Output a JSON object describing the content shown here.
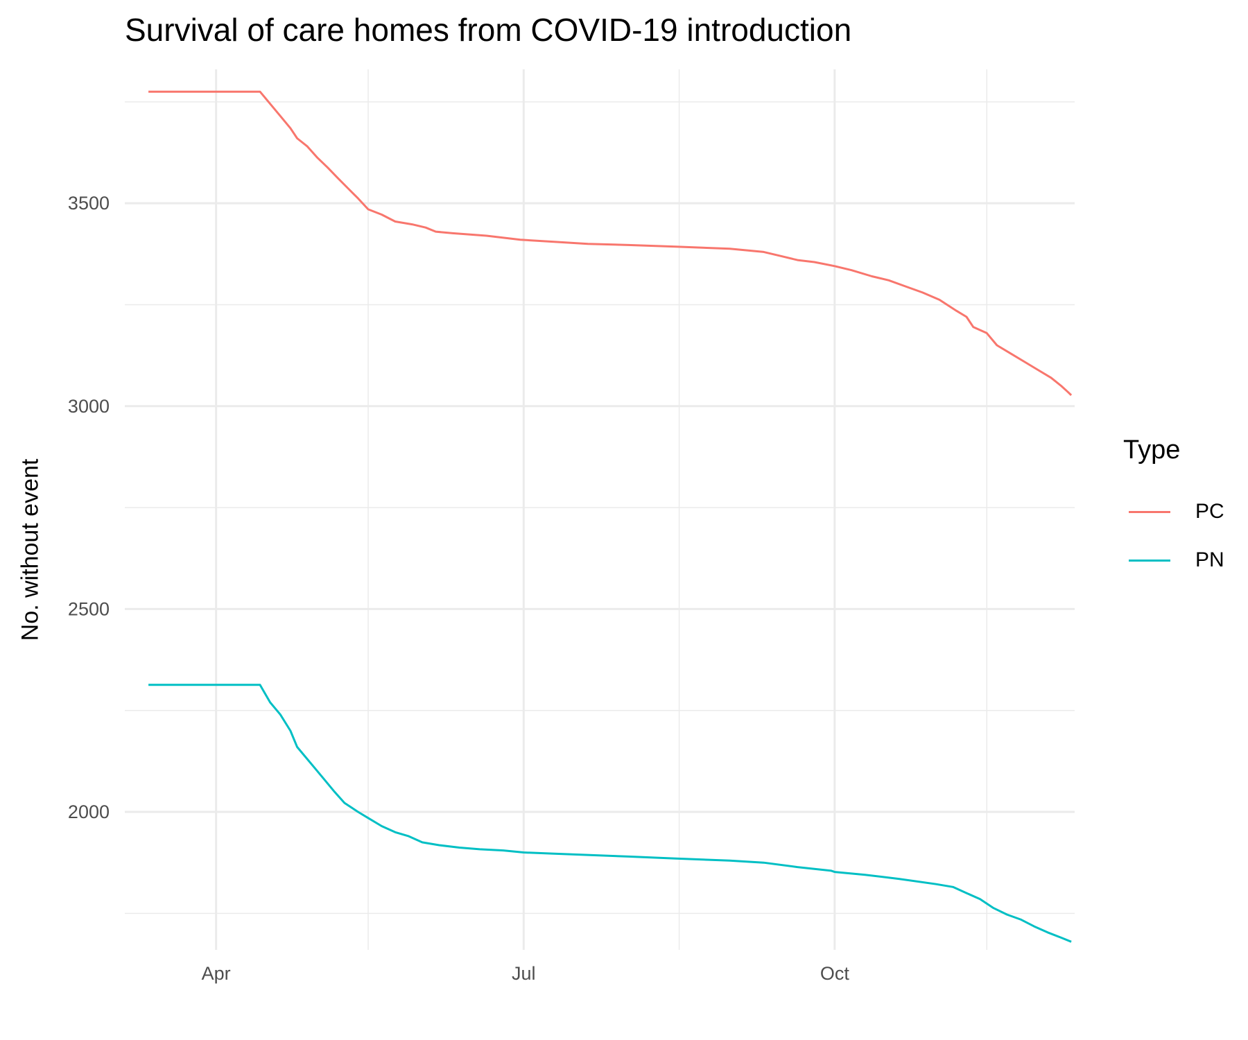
{
  "chart_data": {
    "type": "line",
    "title": "Survival of care homes from COVID-19 introduction",
    "xlabel": "",
    "ylabel": "No. without event",
    "x_axis": {
      "kind": "date",
      "range": [
        "2020-03-05",
        "2020-12-11"
      ],
      "tick_dates": [
        "2020-04-01",
        "2020-07-01",
        "2020-10-01"
      ],
      "tick_labels": [
        "Apr",
        "Jul",
        "Oct"
      ],
      "minor_dates": [
        "2020-05-16",
        "2020-08-16",
        "2020-11-15"
      ]
    },
    "y_axis": {
      "range": [
        1660,
        3830
      ],
      "ticks": [
        2000,
        2500,
        3000,
        3500
      ],
      "minor_ticks": [
        1750,
        2250,
        2750,
        3250,
        3750
      ]
    },
    "grid": true,
    "legend": {
      "title": "Type",
      "placement": "right"
    },
    "series": [
      {
        "name": "PC",
        "color": "#F8766D",
        "points": [
          [
            "2020-03-12",
            3775
          ],
          [
            "2020-04-14",
            3775
          ],
          [
            "2020-04-17",
            3745
          ],
          [
            "2020-04-20",
            3715
          ],
          [
            "2020-04-23",
            3685
          ],
          [
            "2020-04-25",
            3660
          ],
          [
            "2020-04-28",
            3640
          ],
          [
            "2020-05-01",
            3612
          ],
          [
            "2020-05-04",
            3588
          ],
          [
            "2020-05-07",
            3562
          ],
          [
            "2020-05-10",
            3537
          ],
          [
            "2020-05-13",
            3512
          ],
          [
            "2020-05-16",
            3485
          ],
          [
            "2020-05-20",
            3472
          ],
          [
            "2020-05-24",
            3455
          ],
          [
            "2020-05-29",
            3448
          ],
          [
            "2020-06-02",
            3440
          ],
          [
            "2020-06-05",
            3430
          ],
          [
            "2020-06-10",
            3426
          ],
          [
            "2020-06-20",
            3420
          ],
          [
            "2020-06-30",
            3410
          ],
          [
            "2020-07-10",
            3405
          ],
          [
            "2020-07-20",
            3400
          ],
          [
            "2020-08-01",
            3397
          ],
          [
            "2020-08-15",
            3393
          ],
          [
            "2020-08-31",
            3388
          ],
          [
            "2020-09-10",
            3380
          ],
          [
            "2020-09-15",
            3370
          ],
          [
            "2020-09-20",
            3360
          ],
          [
            "2020-09-25",
            3355
          ],
          [
            "2020-10-01",
            3345
          ],
          [
            "2020-10-06",
            3335
          ],
          [
            "2020-10-12",
            3320
          ],
          [
            "2020-10-17",
            3310
          ],
          [
            "2020-10-22",
            3295
          ],
          [
            "2020-10-27",
            3280
          ],
          [
            "2020-11-01",
            3262
          ],
          [
            "2020-11-06",
            3235
          ],
          [
            "2020-11-09",
            3220
          ],
          [
            "2020-11-11",
            3195
          ],
          [
            "2020-11-15",
            3180
          ],
          [
            "2020-11-18",
            3150
          ],
          [
            "2020-11-22",
            3130
          ],
          [
            "2020-11-26",
            3110
          ],
          [
            "2020-11-30",
            3090
          ],
          [
            "2020-12-04",
            3070
          ],
          [
            "2020-12-07",
            3050
          ],
          [
            "2020-12-09",
            3035
          ],
          [
            "2020-12-10",
            3027
          ]
        ]
      },
      {
        "name": "PN",
        "color": "#00BFC4",
        "points": [
          [
            "2020-03-12",
            2313
          ],
          [
            "2020-04-14",
            2313
          ],
          [
            "2020-04-17",
            2270
          ],
          [
            "2020-04-20",
            2240
          ],
          [
            "2020-04-23",
            2200
          ],
          [
            "2020-04-25",
            2160
          ],
          [
            "2020-04-27",
            2140
          ],
          [
            "2020-04-30",
            2110
          ],
          [
            "2020-05-03",
            2080
          ],
          [
            "2020-05-06",
            2050
          ],
          [
            "2020-05-09",
            2022
          ],
          [
            "2020-05-13",
            2000
          ],
          [
            "2020-05-16",
            1985
          ],
          [
            "2020-05-20",
            1965
          ],
          [
            "2020-05-24",
            1950
          ],
          [
            "2020-05-28",
            1940
          ],
          [
            "2020-06-01",
            1925
          ],
          [
            "2020-06-06",
            1918
          ],
          [
            "2020-06-12",
            1912
          ],
          [
            "2020-06-18",
            1908
          ],
          [
            "2020-06-25",
            1905
          ],
          [
            "2020-07-01",
            1900
          ],
          [
            "2020-07-10",
            1897
          ],
          [
            "2020-07-20",
            1894
          ],
          [
            "2020-08-01",
            1890
          ],
          [
            "2020-08-15",
            1885
          ],
          [
            "2020-08-31",
            1880
          ],
          [
            "2020-09-10",
            1875
          ],
          [
            "2020-09-20",
            1864
          ],
          [
            "2020-09-30",
            1855
          ],
          [
            "2020-10-01",
            1852
          ],
          [
            "2020-10-10",
            1845
          ],
          [
            "2020-10-20",
            1835
          ],
          [
            "2020-10-31",
            1822
          ],
          [
            "2020-11-05",
            1815
          ],
          [
            "2020-11-09",
            1800
          ],
          [
            "2020-11-13",
            1785
          ],
          [
            "2020-11-17",
            1763
          ],
          [
            "2020-11-21",
            1747
          ],
          [
            "2020-11-25",
            1735
          ],
          [
            "2020-11-29",
            1718
          ],
          [
            "2020-12-03",
            1703
          ],
          [
            "2020-12-07",
            1690
          ],
          [
            "2020-12-10",
            1680
          ]
        ]
      }
    ]
  }
}
